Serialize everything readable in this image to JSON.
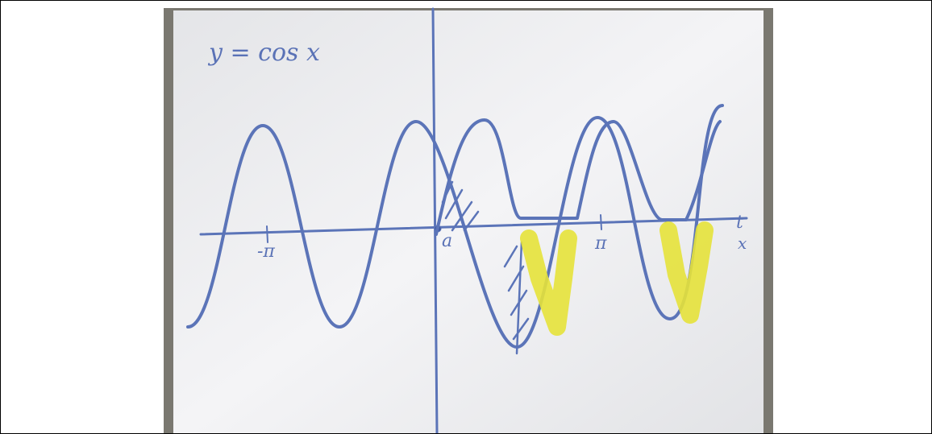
{
  "image": {
    "caption": "y = cos x",
    "labels": {
      "origin": "a",
      "neg_pi": "-π",
      "pi": "π",
      "t_axis": "t",
      "x_axis": "x"
    }
  }
}
